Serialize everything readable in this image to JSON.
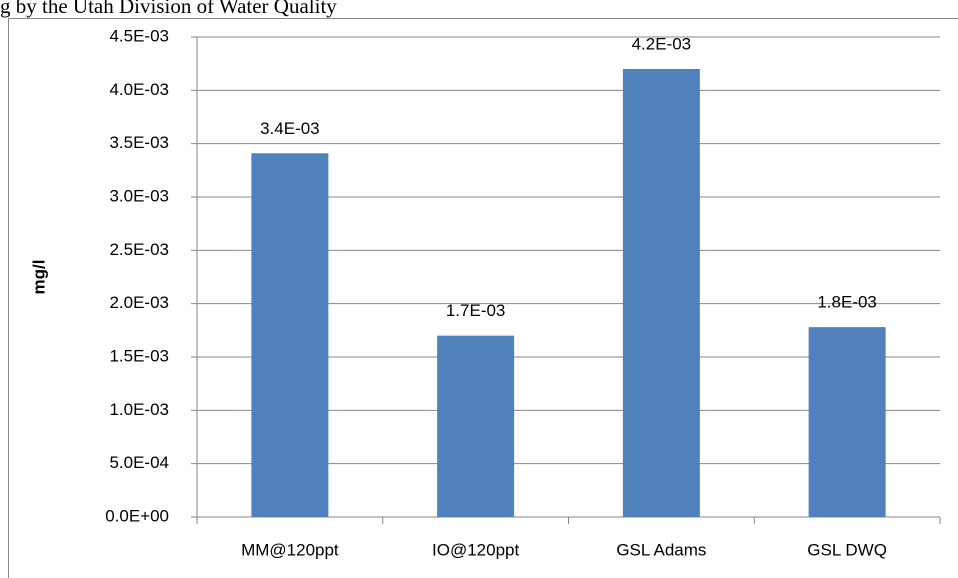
{
  "header": {
    "text": "g by the Utah Division of Water Quality"
  },
  "chart_data": {
    "type": "bar",
    "y_label": "mg/l",
    "categories": [
      "MM@120ppt",
      "IO@120ppt",
      "GSL Adams",
      "GSL DWQ"
    ],
    "values": [
      0.00341,
      0.0017,
      0.0042,
      0.00178
    ],
    "value_labels": [
      "3.4E-03",
      "1.7E-03",
      "4.2E-03",
      "1.8E-03"
    ],
    "color": "#4f81bd",
    "ylim": [
      0,
      0.0045
    ],
    "yticks": [
      {
        "value": 0,
        "label": "0.0E+00"
      },
      {
        "value": 0.0005,
        "label": "5.0E-04"
      },
      {
        "value": 0.001,
        "label": "1.0E-03"
      },
      {
        "value": 0.0015,
        "label": "1.5E-03"
      },
      {
        "value": 0.002,
        "label": "2.0E-03"
      },
      {
        "value": 0.0025,
        "label": "2.5E-03"
      },
      {
        "value": 0.003,
        "label": "3.0E-03"
      },
      {
        "value": 0.0035,
        "label": "3.5E-03"
      },
      {
        "value": 0.004,
        "label": "4.0E-03"
      },
      {
        "value": 0.0045,
        "label": "4.5E-03"
      }
    ],
    "grid": true
  }
}
